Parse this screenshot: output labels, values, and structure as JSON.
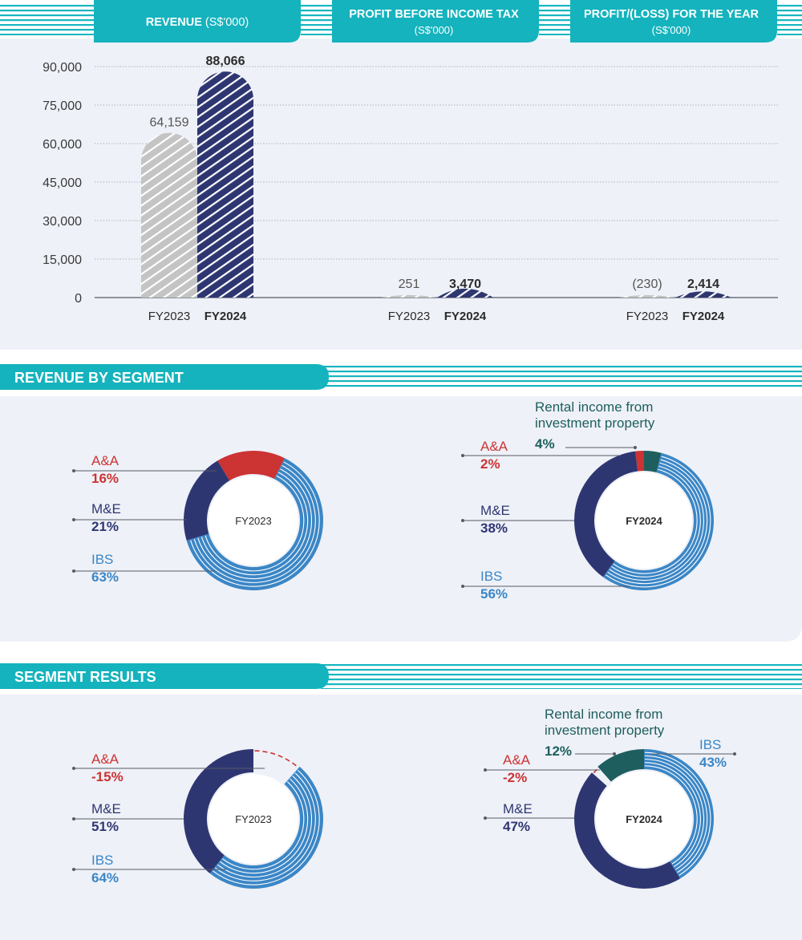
{
  "headers": {
    "revenue_main": "REVENUE",
    "revenue_unit": "(S$'000)",
    "pbt_main": "PROFIT BEFORE INCOME TAX",
    "pbt_unit": "(S$'000)",
    "pl_main": "PROFIT/(LOSS) FOR THE YEAR",
    "pl_unit": "(S$'000)"
  },
  "sections": {
    "revenue_by_segment": "REVENUE BY SEGMENT",
    "segment_results": "SEGMENT RESULTS"
  },
  "colors": {
    "teal": "#14b3bd",
    "navy": "#2e3672",
    "blue": "#3b86c6",
    "red": "#cc3333",
    "dark_teal": "#1e5e5e",
    "grey": "#c8c8c8",
    "panel": "#eef1f7"
  },
  "chart_data": [
    {
      "type": "bar",
      "name": "financial-highlights",
      "categories": [
        "FY2023",
        "FY2024"
      ],
      "groups": [
        {
          "label": "REVENUE (S$'000)",
          "values": [
            64159,
            88066
          ],
          "value_labels": [
            "64,159",
            "88,066"
          ]
        },
        {
          "label": "PROFIT BEFORE INCOME TAX (S$'000)",
          "values": [
            251,
            3470
          ],
          "value_labels": [
            "251",
            "3,470"
          ]
        },
        {
          "label": "PROFIT/(LOSS) FOR THE YEAR (S$'000)",
          "values": [
            -230,
            2414
          ],
          "value_labels": [
            "(230)",
            "2,414"
          ]
        }
      ],
      "ylim": [
        0,
        90000
      ],
      "yticks": [
        0,
        15000,
        30000,
        45000,
        60000,
        75000,
        90000
      ],
      "ytick_labels": [
        "0",
        "15,000",
        "30,000",
        "45,000",
        "60,000",
        "75,000",
        "90,000"
      ],
      "grid": true
    },
    {
      "type": "pie",
      "name": "revenue-by-segment-fy2023",
      "center_label": "FY2023",
      "slices": [
        {
          "label": "A&A",
          "value": 16,
          "pct": "16%",
          "color": "#cc3333"
        },
        {
          "label": "M&E",
          "value": 21,
          "pct": "21%",
          "color": "#2e3672"
        },
        {
          "label": "IBS",
          "value": 63,
          "pct": "63%",
          "color": "#3b86c6"
        }
      ]
    },
    {
      "type": "pie",
      "name": "revenue-by-segment-fy2024",
      "center_label": "FY2024",
      "slices": [
        {
          "label": "Rental income from investment property",
          "value": 4,
          "pct": "4%",
          "color": "#1e5e5e"
        },
        {
          "label": "A&A",
          "value": 2,
          "pct": "2%",
          "color": "#cc3333"
        },
        {
          "label": "M&E",
          "value": 38,
          "pct": "38%",
          "color": "#2e3672"
        },
        {
          "label": "IBS",
          "value": 56,
          "pct": "56%",
          "color": "#3b86c6"
        }
      ]
    },
    {
      "type": "pie",
      "name": "segment-results-fy2023",
      "center_label": "FY2023",
      "slices": [
        {
          "label": "A&A",
          "value": -15,
          "pct": "-15%",
          "color": "#cc3333"
        },
        {
          "label": "M&E",
          "value": 51,
          "pct": "51%",
          "color": "#2e3672"
        },
        {
          "label": "IBS",
          "value": 64,
          "pct": "64%",
          "color": "#3b86c6"
        }
      ]
    },
    {
      "type": "pie",
      "name": "segment-results-fy2024",
      "center_label": "FY2024",
      "slices": [
        {
          "label": "IBS",
          "value": 43,
          "pct": "43%",
          "color": "#3b86c6"
        },
        {
          "label": "Rental income from investment property",
          "value": 12,
          "pct": "12%",
          "color": "#1e5e5e"
        },
        {
          "label": "A&A",
          "value": -2,
          "pct": "-2%",
          "color": "#cc3333"
        },
        {
          "label": "M&E",
          "value": 47,
          "pct": "47%",
          "color": "#2e3672"
        }
      ]
    }
  ]
}
